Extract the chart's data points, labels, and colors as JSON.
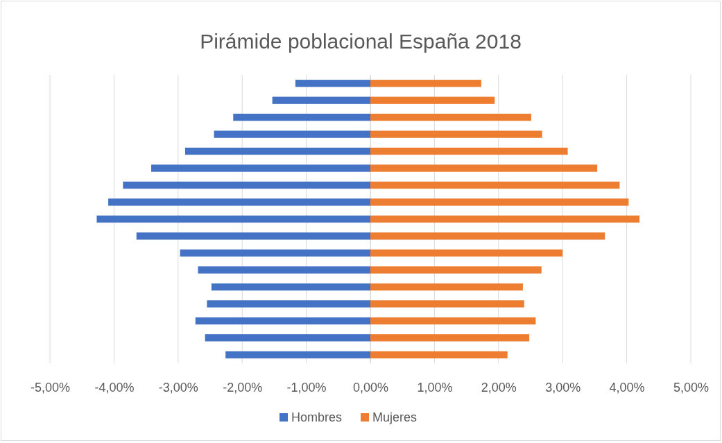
{
  "chart_data": {
    "type": "bar",
    "orientation": "horizontal",
    "title": "Pirámide poblacional España 2018",
    "categories": [
      null,
      null,
      null,
      null,
      null,
      null,
      null,
      null,
      null,
      null,
      null,
      null,
      null,
      null,
      null,
      null,
      null
    ],
    "series": [
      {
        "name": "Hombres",
        "color": "#4472c4",
        "values": [
          -1.17,
          -1.53,
          -2.14,
          -2.44,
          -2.89,
          -3.42,
          -3.86,
          -4.09,
          -4.27,
          -3.65,
          -2.97,
          -2.69,
          -2.48,
          -2.55,
          -2.73,
          -2.58,
          -2.26
        ]
      },
      {
        "name": "Mujeres",
        "color": "#ed7d31",
        "values": [
          1.73,
          1.94,
          2.51,
          2.68,
          3.08,
          3.54,
          3.89,
          4.03,
          4.2,
          3.66,
          3,
          2.67,
          2.38,
          2.4,
          2.58,
          2.48,
          2.14
        ]
      }
    ],
    "xlim": [
      -5,
      5
    ],
    "xticks": [
      {
        "value": -5,
        "label": "-5,00%"
      },
      {
        "value": -4,
        "label": "-4,00%"
      },
      {
        "value": -3,
        "label": "-3,00%"
      },
      {
        "value": -2,
        "label": "-2,00%"
      },
      {
        "value": -1,
        "label": "-1,00%"
      },
      {
        "value": 0,
        "label": "0,00%"
      },
      {
        "value": 1,
        "label": "1,00%"
      },
      {
        "value": 2,
        "label": "2,00%"
      },
      {
        "value": 3,
        "label": "3,00%"
      },
      {
        "value": 4,
        "label": "4,00%"
      },
      {
        "value": 5,
        "label": "5,00%"
      }
    ],
    "grid": "x",
    "legend": "bottom",
    "stacked": true
  }
}
